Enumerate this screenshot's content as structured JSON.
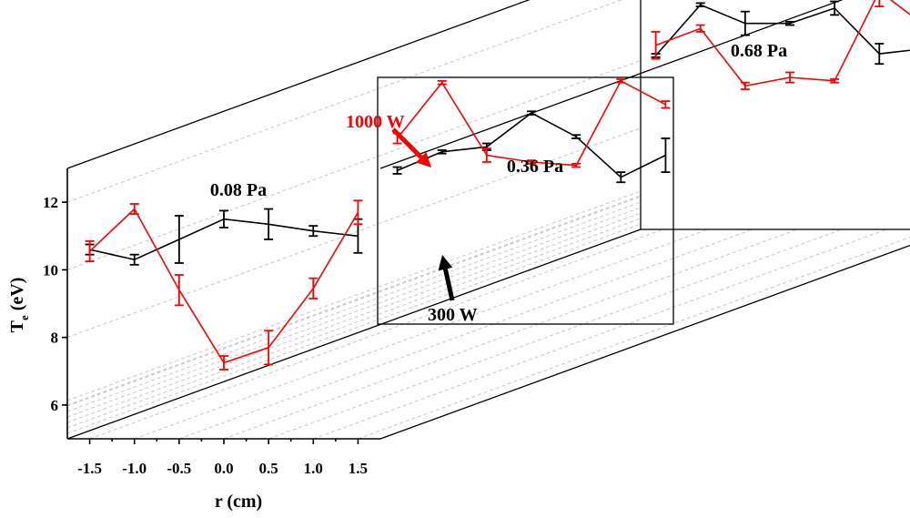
{
  "chart_data": {
    "type": "line",
    "subtype": "3d-waterfall-with-error-bars",
    "xlabel": "r (cm)",
    "ylabel": "T",
    "ylabel_sub": "e",
    "ylabel_unit": " (eV)",
    "x_ticks": [
      "-1.5",
      "-1.0",
      "-0.5",
      "0.0",
      "0.5",
      "1.0",
      "1.5"
    ],
    "y_ticks": [
      "6",
      "8",
      "10",
      "12"
    ],
    "xlim": [
      -1.75,
      1.75
    ],
    "ylim": [
      5,
      13
    ],
    "colors": {
      "300 W": "#000000",
      "1000 W": "#ff0000"
    },
    "annotations": [
      {
        "text": "1000 W",
        "color": "#ff0000",
        "points_to": "1000 W"
      },
      {
        "text": "300 W",
        "color": "#000000",
        "points_to": "300 W"
      }
    ],
    "panels": [
      {
        "pressure_label": "0.08 Pa",
        "series": [
          {
            "key": "300 W",
            "x": [
              -1.5,
              -1.0,
              -0.5,
              0.0,
              0.5,
              1.0,
              1.5
            ],
            "y": [
              10.6,
              10.3,
              10.9,
              11.5,
              11.35,
              11.15,
              11.0
            ],
            "err": [
              0.15,
              0.15,
              0.7,
              0.25,
              0.45,
              0.15,
              0.5
            ]
          },
          {
            "key": "1000 W",
            "x": [
              -1.5,
              -1.0,
              -0.5,
              0.0,
              0.5,
              1.0,
              1.5
            ],
            "y": [
              10.55,
              11.8,
              9.4,
              7.25,
              7.7,
              9.45,
              11.7
            ],
            "err": [
              0.3,
              0.15,
              0.45,
              0.2,
              0.5,
              0.3,
              0.35
            ]
          }
        ]
      },
      {
        "pressure_label": "0.36 Pa",
        "series": [
          {
            "key": "300 W",
            "x": [
              -1.5,
              -1.0,
              -0.5,
              0.0,
              0.5,
              1.0,
              1.5
            ],
            "y": [
              10.3,
              10.85,
              11.0,
              12.0,
              11.3,
              10.1,
              10.75
            ],
            "err": [
              0.1,
              0.05,
              0.1,
              0.05,
              0.05,
              0.15,
              0.5
            ]
          },
          {
            "key": "1000 W",
            "x": [
              -1.5,
              -1.0,
              -0.5,
              0.0,
              0.5,
              1.0,
              1.5
            ],
            "y": [
              11.25,
              12.9,
              10.75,
              10.55,
              10.45,
              12.95,
              12.25
            ],
            "err": [
              0.15,
              0.05,
              0.2,
              0.05,
              0.05,
              0.05,
              0.1
            ]
          }
        ]
      },
      {
        "pressure_label": "0.68 Pa",
        "series": [
          {
            "key": "300 W",
            "x": [
              -1.5,
              -1.0,
              -0.5,
              0.0,
              0.5,
              1.0,
              1.5
            ],
            "y": [
              10.2,
              11.7,
              11.15,
              11.15,
              11.6,
              10.25,
              10.4
            ],
            "err": [
              0.05,
              0.05,
              0.35,
              0.05,
              0.2,
              0.3,
              0.1
            ]
          },
          {
            "key": "1000 W",
            "x": [
              -1.5,
              -1.0,
              -0.5,
              0.0,
              0.5,
              1.0,
              1.5
            ],
            "y": [
              10.5,
              11.0,
              9.3,
              9.55,
              9.45,
              12.1,
              11.1
            ],
            "err": [
              0.4,
              0.1,
              0.1,
              0.15,
              0.05,
              0.45,
              0.25
            ]
          }
        ]
      }
    ]
  }
}
